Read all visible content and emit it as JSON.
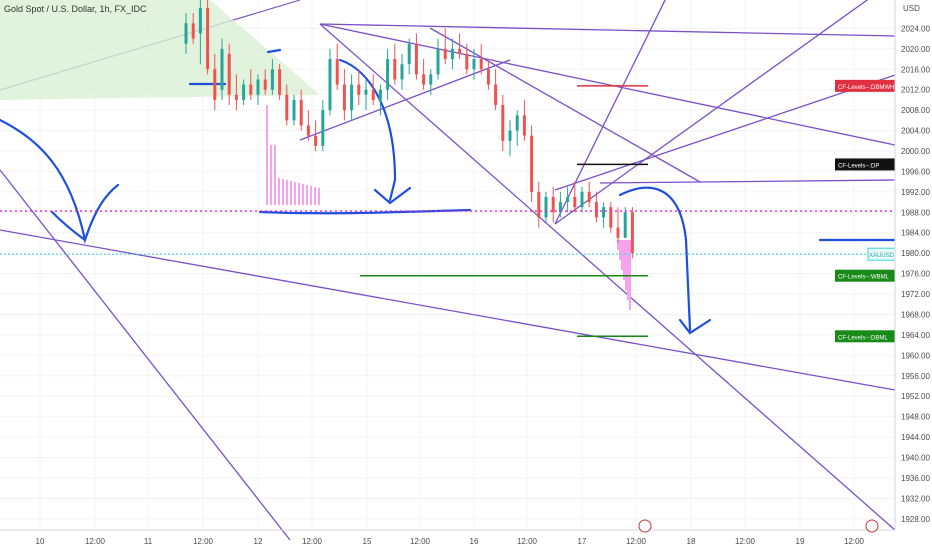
{
  "chart_data": {
    "type": "candlestick",
    "title": "Gold Spot / U.S. Dollar, 1h, FX_IDC",
    "currency": "USD",
    "y_ticks": [
      2024,
      2020,
      2016,
      2012,
      2008,
      2004,
      2000,
      1996,
      1992,
      1988,
      1984,
      1980,
      1976,
      1972,
      1968,
      1964,
      1960,
      1956,
      1952,
      1948,
      1944,
      1940,
      1936,
      1932,
      1928
    ],
    "ylim": [
      1926.4,
      2027.6
    ],
    "x_ticks": [
      "10",
      "12:00",
      "11",
      "12:00",
      "12",
      "12:00",
      "15",
      "12:00",
      "16",
      "12:00",
      "17",
      "12:00",
      "18",
      "12:00",
      "19",
      "12:00"
    ],
    "levels": [
      {
        "name": "CF-Levels--:DBMWH",
        "value": 2012.75,
        "value_label": "2012.75",
        "color": "#e0303f"
      },
      {
        "name": "CF-Levels--:DP",
        "value": 1997.37,
        "value_label": "1997.37",
        "color": "#111111"
      },
      {
        "name": "",
        "value": 1988.24,
        "value_label": "1988.24",
        "color": "#e81fd0"
      },
      {
        "name": "XAUUSD",
        "value": 1979.8,
        "value_label": "1979.80",
        "sub_label": "15:55",
        "color": "#3ad3d3"
      },
      {
        "name": "CF-Levels--:WBML",
        "value": 1975.59,
        "value_label": "1975.59",
        "color": "#178a17"
      },
      {
        "name": "CF-Levels--:DBML",
        "value": 1963.73,
        "value_label": "1963.73",
        "color": "#178a17"
      }
    ],
    "candles_note": "",
    "candles": [
      [
        1,
        2021,
        2027,
        2019,
        2025
      ],
      [
        1,
        2025,
        2027,
        2021,
        2022
      ],
      [
        4,
        2023,
        2030,
        2017,
        2028
      ],
      [
        4,
        2028,
        2030,
        2015,
        2016
      ],
      [
        4,
        2016,
        2019,
        2008,
        2010
      ],
      [
        4,
        2012,
        2022,
        2010,
        2020
      ],
      [
        4,
        2019,
        2021,
        2009,
        2011
      ],
      [
        4,
        2011,
        2015,
        2008,
        2010
      ],
      [
        4,
        2010,
        2014,
        2009,
        2013
      ],
      [
        4,
        2013,
        2016,
        2010,
        2011
      ],
      [
        4,
        2011,
        2015,
        2009,
        2014
      ],
      [
        4,
        2014,
        2016,
        2011,
        2012
      ],
      [
        4,
        2012,
        2018,
        2011,
        2016
      ],
      [
        4,
        2016,
        2017,
        2010,
        2011
      ],
      [
        4,
        2011,
        2013,
        2005,
        2006
      ],
      [
        4,
        2006,
        2011,
        2005,
        2010
      ],
      [
        4,
        2010,
        2012,
        2004,
        2005
      ],
      [
        4,
        2005,
        2008,
        2002,
        2003
      ],
      [
        4,
        2003,
        2006,
        2000,
        2001
      ],
      [
        4,
        2001,
        2010,
        2000,
        2008
      ],
      [
        4,
        2008,
        2020,
        2007,
        2018
      ],
      [
        4,
        2018,
        2021,
        2012,
        2013
      ],
      [
        4,
        2013,
        2016,
        2006,
        2008
      ],
      [
        4,
        2008,
        2015,
        2006,
        2013
      ],
      [
        4,
        2013,
        2016,
        2009,
        2011
      ],
      [
        4,
        2011,
        2014,
        2008,
        2012
      ],
      [
        4,
        2012,
        2015,
        2009,
        2010
      ],
      [
        4,
        2010,
        2013,
        2007,
        2012
      ],
      [
        4,
        2012,
        2020,
        2010,
        2018
      ],
      [
        4,
        2018,
        2021,
        2013,
        2014
      ],
      [
        4,
        2014,
        2019,
        2012,
        2017
      ],
      [
        4,
        2017,
        2022,
        2015,
        2021
      ],
      [
        4,
        2021,
        2023,
        2014,
        2015
      ],
      [
        4,
        2015,
        2018,
        2012,
        2013
      ],
      [
        4,
        2013,
        2016,
        2011,
        2015
      ],
      [
        4,
        2015,
        2022,
        2014,
        2020
      ],
      [
        4,
        2020,
        2024,
        2017,
        2018
      ],
      [
        4,
        2018,
        2022,
        2016,
        2020
      ],
      [
        4,
        2020,
        2023,
        2018,
        2019
      ],
      [
        4,
        2019,
        2021,
        2015,
        2016
      ],
      [
        4,
        2016,
        2020,
        2014,
        2018
      ],
      [
        4,
        2018,
        2021,
        2015,
        2016
      ],
      [
        4,
        2016,
        2018,
        2012,
        2013
      ],
      [
        4,
        2013,
        2016,
        2008,
        2009
      ],
      [
        4,
        2009,
        2011,
        2000,
        2002
      ],
      [
        4,
        2002,
        2006,
        1999,
        2004
      ],
      [
        4,
        2004,
        2008,
        2001,
        2007
      ],
      [
        4,
        2007,
        2010,
        2002,
        2003
      ],
      [
        4,
        2003,
        2005,
        1990,
        1992
      ],
      [
        4,
        1992,
        1994,
        1985,
        1987
      ],
      [
        4,
        1987,
        1992,
        1986,
        1991
      ],
      [
        4,
        1991,
        1993,
        1986,
        1988
      ],
      [
        4,
        1988,
        1992,
        1987,
        1990
      ],
      [
        4,
        1990,
        1993,
        1988,
        1991
      ],
      [
        4,
        1991,
        1994,
        1988,
        1989
      ],
      [
        4,
        1989,
        1993,
        1988,
        1992
      ],
      [
        4,
        1992,
        1994,
        1989,
        1990
      ],
      [
        4,
        1990,
        1992,
        1986,
        1987
      ],
      [
        4,
        1987,
        1990,
        1985,
        1989
      ],
      [
        4,
        1989,
        1990,
        1984,
        1985
      ],
      [
        4,
        1985,
        1989,
        1982,
        1983
      ],
      [
        4,
        1983,
        1989,
        1983,
        1988
      ],
      [
        4,
        1988,
        1989,
        1979,
        1980
      ]
    ]
  }
}
